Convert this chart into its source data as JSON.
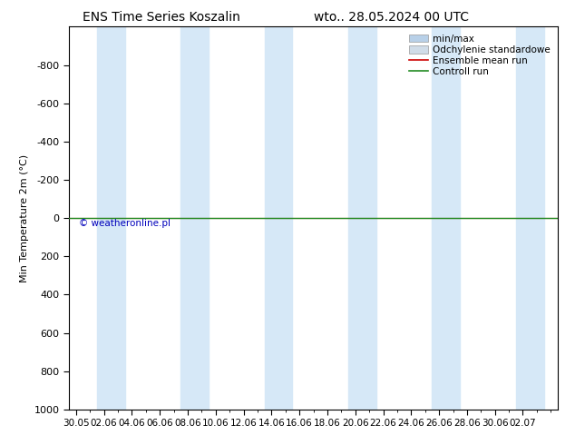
{
  "title_left": "ENS Time Series Koszalin",
  "title_right": "wto.. 28.05.2024 00 UTC",
  "ylabel": "Min Temperature 2m (°C)",
  "ytick_vals": [
    -800,
    -600,
    -400,
    -200,
    0,
    200,
    400,
    600,
    800,
    1000
  ],
  "ytick_labels": [
    "-800",
    "-600",
    "-400",
    "-200",
    "0",
    "200",
    "400",
    "600",
    "800",
    "1000"
  ],
  "ylim_bottom": 1000,
  "ylim_top": -1000,
  "x_labels": [
    "30.05",
    "02.06",
    "04.06",
    "06.06",
    "08.06",
    "10.06",
    "12.06",
    "14.06",
    "16.06",
    "18.06",
    "20.06",
    "22.06",
    "24.06",
    "26.06",
    "28.06",
    "30.06",
    "02.07"
  ],
  "xlim_min": -0.5,
  "xlim_max": 34.5,
  "shaded_bands": [
    [
      1.5,
      3.5
    ],
    [
      7.5,
      9.5
    ],
    [
      13.5,
      15.5
    ],
    [
      19.5,
      21.5
    ],
    [
      25.5,
      27.5
    ],
    [
      31.5,
      33.5
    ]
  ],
  "shaded_color": "#d6e8f7",
  "control_run_color": "#228B22",
  "ensemble_mean_color": "#cc0000",
  "watermark": "© weatheronline.pl",
  "watermark_color": "#0000bb",
  "bg_color": "#ffffff",
  "legend_minmax_color": "#b8d0e8",
  "legend_std_color": "#d0dce8",
  "title_fontsize": 10,
  "axis_label_fontsize": 8,
  "tick_fontsize": 8,
  "legend_fontsize": 7.5
}
